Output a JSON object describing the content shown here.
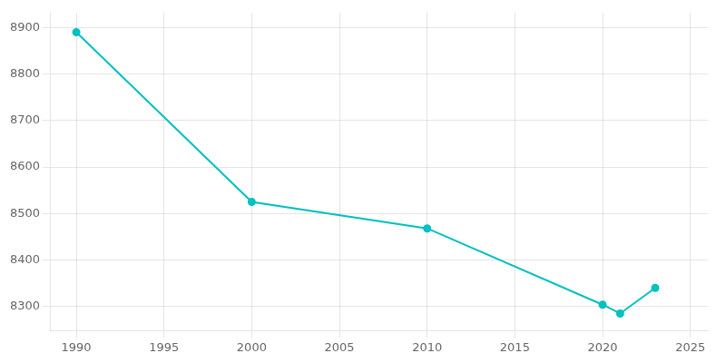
{
  "chart_data": {
    "type": "line",
    "x": [
      1990,
      2000,
      2010,
      2020,
      2021,
      2023
    ],
    "values": [
      8890,
      8525,
      8468,
      8304,
      8285,
      8340
    ],
    "color": "#00C0C0",
    "marker": "circle",
    "xlim": [
      1988.5,
      2026
    ],
    "ylim": [
      8248,
      8932
    ],
    "xticks": [
      1990,
      1995,
      2000,
      2005,
      2010,
      2015,
      2020,
      2025
    ],
    "yticks": [
      8300,
      8400,
      8500,
      8600,
      8700,
      8800,
      8900
    ],
    "grid": true
  }
}
